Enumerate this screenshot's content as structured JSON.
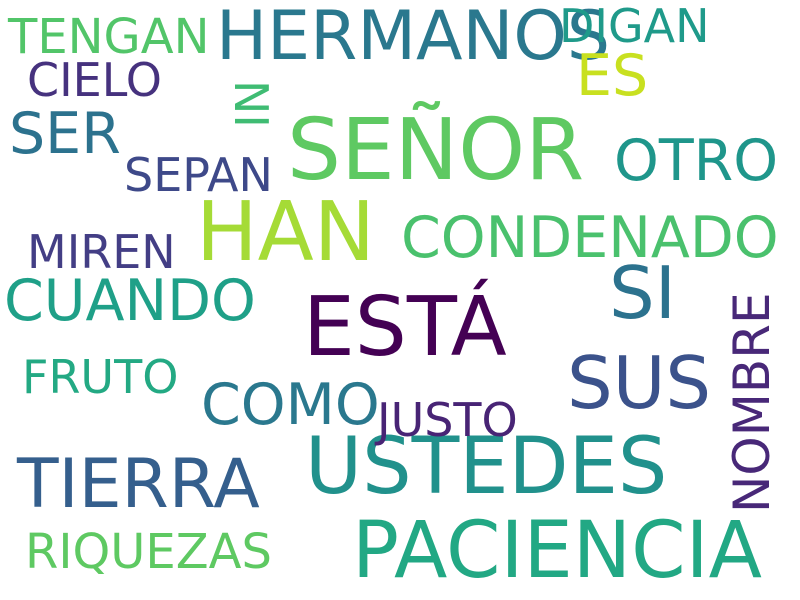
{
  "words": [
    {
      "id": "senor",
      "text": "SEÑOR",
      "color": "#5ec962"
    },
    {
      "id": "han",
      "text": "HAN",
      "color": "#a5db36"
    },
    {
      "id": "esta",
      "text": "ESTÁ",
      "color": "#440154"
    },
    {
      "id": "ustedes",
      "text": "USTEDES",
      "color": "#21918c"
    },
    {
      "id": "paciencia",
      "text": "PACIENCIA",
      "color": "#22a884"
    },
    {
      "id": "hermanos",
      "text": "HERMANOS",
      "color": "#2a788e"
    },
    {
      "id": "sus",
      "text": "SUS",
      "color": "#3b528b"
    },
    {
      "id": "si",
      "text": "SI",
      "color": "#2c728e"
    },
    {
      "id": "tierra",
      "text": "TIERRA",
      "color": "#355f8d"
    },
    {
      "id": "condenado",
      "text": "CONDENADO",
      "color": "#4ac16d"
    },
    {
      "id": "cuando",
      "text": "CUANDO",
      "color": "#1fa088"
    },
    {
      "id": "como",
      "text": "COMO",
      "color": "#2a788e"
    },
    {
      "id": "otro",
      "text": "OTRO",
      "color": "#1f968b"
    },
    {
      "id": "ser",
      "text": "SER",
      "color": "#2c728e"
    },
    {
      "id": "nombre",
      "text": "NOMBRE",
      "color": "#482878"
    },
    {
      "id": "riquezas",
      "text": "RIQUEZAS",
      "color": "#5ec962"
    },
    {
      "id": "tengan",
      "text": "TENGAN",
      "color": "#52c569"
    },
    {
      "id": "es",
      "text": "ES",
      "color": "#c8e020"
    },
    {
      "id": "digan",
      "text": "DIGAN",
      "color": "#1f9a8a"
    },
    {
      "id": "cielo",
      "text": "CIELO",
      "color": "#46327e"
    },
    {
      "id": "ni",
      "text": "NI",
      "color": "#3fbc73"
    },
    {
      "id": "sepan",
      "text": "SEPAN",
      "color": "#3e4989"
    },
    {
      "id": "miren",
      "text": "MIREN",
      "color": "#433e85"
    },
    {
      "id": "fruto",
      "text": "FRUTO",
      "color": "#23a983"
    },
    {
      "id": "justo",
      "text": "JUSTO",
      "color": "#482475"
    }
  ]
}
